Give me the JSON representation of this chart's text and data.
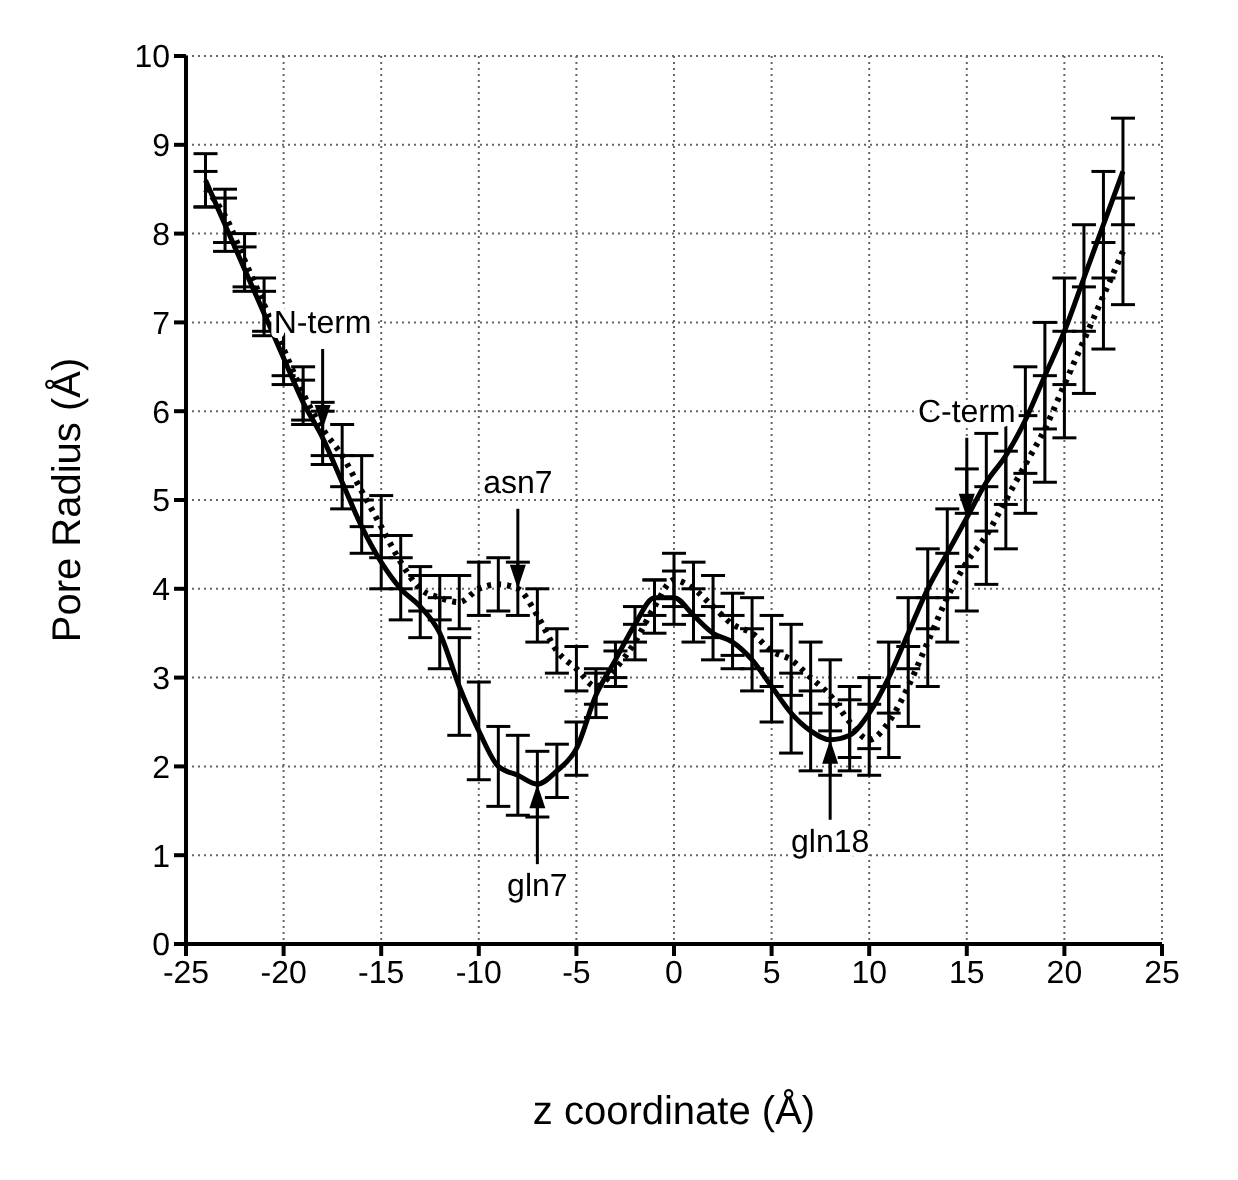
{
  "chart_data": {
    "type": "line",
    "xlabel": "z coordinate (Å)",
    "ylabel": "Pore Radius (Å)",
    "x": [
      -24,
      -23,
      -22,
      -21,
      -20,
      -19,
      -18,
      -17,
      -16,
      -15,
      -14,
      -13,
      -12,
      -11,
      -10,
      -9,
      -8,
      -7,
      -6,
      -5,
      -4,
      -3,
      -2,
      -1,
      0,
      1,
      2,
      3,
      4,
      5,
      6,
      7,
      8,
      9,
      10,
      11,
      12,
      13,
      14,
      15,
      16,
      17,
      18,
      19,
      20,
      21,
      22,
      23
    ],
    "series": [
      {
        "color": "#000000",
        "line_style": "solid",
        "values": [
          8.6,
          8.1,
          7.6,
          7.1,
          6.6,
          6.1,
          5.7,
          5.2,
          4.7,
          4.3,
          4.0,
          3.8,
          3.5,
          2.9,
          2.4,
          2.0,
          1.9,
          1.8,
          1.95,
          2.2,
          2.8,
          3.2,
          3.6,
          3.9,
          3.9,
          3.7,
          3.5,
          3.4,
          3.2,
          2.9,
          2.6,
          2.4,
          2.3,
          2.35,
          2.6,
          3.0,
          3.5,
          4.0,
          4.4,
          4.8,
          5.2,
          5.5,
          5.9,
          6.4,
          6.9,
          7.5,
          8.1,
          8.7
        ],
        "errors": [
          0.3,
          0.3,
          0.25,
          0.25,
          0.3,
          0.25,
          0.3,
          0.3,
          0.3,
          0.3,
          0.35,
          0.35,
          0.4,
          0.55,
          0.55,
          0.45,
          0.45,
          0.37,
          0.3,
          0.3,
          0.25,
          0.2,
          0.2,
          0.2,
          0.3,
          0.3,
          0.3,
          0.3,
          0.35,
          0.4,
          0.45,
          0.45,
          0.4,
          0.4,
          0.4,
          0.4,
          0.4,
          0.45,
          0.5,
          0.55,
          0.55,
          0.55,
          0.6,
          0.6,
          0.6,
          0.6,
          0.6,
          0.6
        ]
      },
      {
        "color": "#000000",
        "line_style": "dotted",
        "values": [
          8.5,
          8.2,
          7.7,
          7.2,
          6.7,
          6.2,
          5.8,
          5.5,
          5.1,
          4.7,
          4.3,
          4.0,
          3.9,
          3.85,
          4.0,
          4.05,
          4.0,
          3.7,
          3.3,
          3.1,
          2.9,
          3.1,
          3.4,
          3.8,
          4.1,
          4.0,
          3.8,
          3.6,
          3.5,
          3.3,
          3.2,
          3.0,
          2.8,
          2.5,
          2.3,
          2.5,
          2.9,
          3.4,
          3.9,
          4.3,
          4.6,
          5.0,
          5.4,
          5.8,
          6.3,
          6.8,
          7.3,
          7.8
        ],
        "errors": [
          0.2,
          0.3,
          0.3,
          0.3,
          0.3,
          0.3,
          0.3,
          0.35,
          0.4,
          0.35,
          0.3,
          0.25,
          0.25,
          0.3,
          0.3,
          0.3,
          0.3,
          0.3,
          0.25,
          0.25,
          0.2,
          0.2,
          0.2,
          0.3,
          0.3,
          0.3,
          0.35,
          0.35,
          0.4,
          0.4,
          0.4,
          0.4,
          0.4,
          0.4,
          0.4,
          0.4,
          0.45,
          0.5,
          0.5,
          0.55,
          0.55,
          0.55,
          0.55,
          0.6,
          0.6,
          0.6,
          0.6,
          0.6
        ]
      }
    ],
    "xlim": [
      -25,
      25
    ],
    "xticks": [
      -25,
      -20,
      -15,
      -10,
      -5,
      0,
      5,
      10,
      15,
      20,
      25
    ],
    "ylim": [
      0,
      10
    ],
    "yticks": [
      0,
      1,
      2,
      3,
      4,
      5,
      6,
      7,
      8,
      9,
      10
    ],
    "grid": true,
    "legend": false,
    "marker": "none",
    "annotations": [
      {
        "text": "N-term",
        "x": -18,
        "y": 5.8
      },
      {
        "text": "asn7",
        "x": -8,
        "y": 4.0
      },
      {
        "text": "C-term",
        "x": 15,
        "y": 4.8
      },
      {
        "text": "gln7",
        "x": -7,
        "y": 1.8
      },
      {
        "text": "gln18",
        "x": 8,
        "y": 2.3
      }
    ]
  }
}
